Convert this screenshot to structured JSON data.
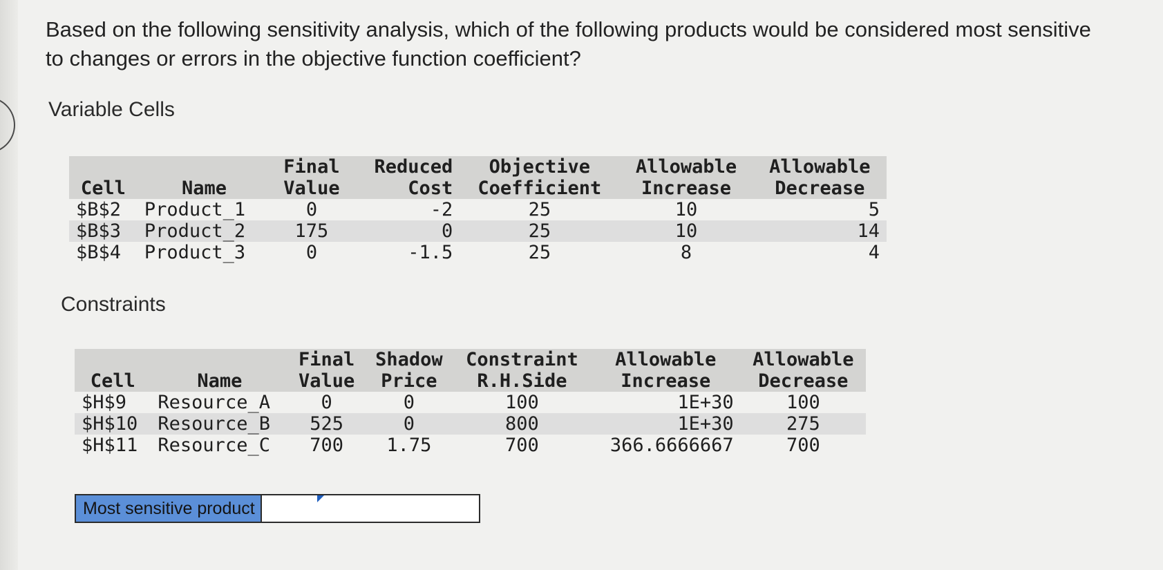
{
  "question": "Based on the following sensitivity analysis, which of the following products would be considered most sensitive to changes or errors in the objective function coefficient?",
  "variable_cells": {
    "title": "Variable Cells",
    "headers": [
      [
        "",
        "Cell"
      ],
      [
        "",
        "Name"
      ],
      [
        "Final",
        "Value"
      ],
      [
        "Reduced",
        "Cost"
      ],
      [
        "Objective",
        "Coefficient"
      ],
      [
        "Allowable",
        "Increase"
      ],
      [
        "Allowable",
        "Decrease"
      ]
    ],
    "rows": [
      [
        "$B$2",
        "Product_1",
        "0",
        "-2",
        "25",
        "10",
        "5"
      ],
      [
        "$B$3",
        "Product_2",
        "175",
        "0",
        "25",
        "10",
        "14"
      ],
      [
        "$B$4",
        "Product_3",
        "0",
        "-1.5",
        "25",
        "8",
        "4"
      ]
    ]
  },
  "constraints": {
    "title": "Constraints",
    "headers": [
      [
        "",
        "Cell"
      ],
      [
        "",
        "Name"
      ],
      [
        "Final",
        "Value"
      ],
      [
        "Shadow",
        "Price"
      ],
      [
        "Constraint",
        "R.H.Side"
      ],
      [
        "Allowable",
        "Increase"
      ],
      [
        "Allowable",
        "Decrease"
      ]
    ],
    "rows": [
      [
        "$H$9",
        "Resource_A",
        "0",
        "0",
        "100",
        "1E+30",
        "100"
      ],
      [
        "$H$10",
        "Resource_B",
        "525",
        "0",
        "800",
        "1E+30",
        "275"
      ],
      [
        "$H$11",
        "Resource_C",
        "700",
        "1.75",
        "700",
        "366.6666667",
        "700"
      ]
    ]
  },
  "answer": {
    "label": "Most sensitive product",
    "value": ""
  }
}
